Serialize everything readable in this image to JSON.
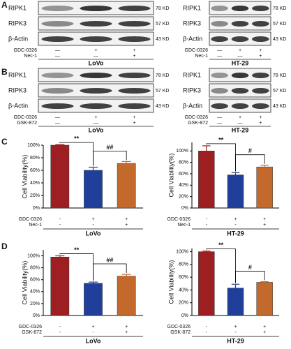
{
  "panel_labels": [
    "A",
    "B",
    "C",
    "D"
  ],
  "blots": [
    {
      "cell_line": "LoVo",
      "bands": [
        {
          "label": "RIPK1",
          "size": "78 KD"
        },
        {
          "label": "RIPK3",
          "size": "57 KD"
        },
        {
          "label": "β-Actin",
          "size": "43 KD"
        }
      ],
      "treatments": [
        {
          "name": "GDC-0326",
          "signs": [
            "—",
            "+",
            "+"
          ]
        },
        {
          "name": "Nec-1",
          "signs": [
            "—",
            "—",
            "+"
          ]
        }
      ]
    },
    {
      "cell_line": "HT-29",
      "bands": [
        {
          "label": "RIPK1",
          "size": "78 KD"
        },
        {
          "label": "RIPK3",
          "size": "57 KD"
        },
        {
          "label": "β-Actin",
          "size": "43 KD"
        }
      ],
      "treatments": [
        {
          "name": "GDC-0326",
          "signs": [
            "—",
            "+",
            "+"
          ]
        },
        {
          "name": "Nec-1",
          "signs": [
            "—",
            "—",
            "+"
          ]
        }
      ]
    },
    {
      "cell_line": "LoVo",
      "bands": [
        {
          "label": "RIPK1",
          "size": "78 KD"
        },
        {
          "label": "RIPK3",
          "size": "57 KD"
        },
        {
          "label": "β-Actin",
          "size": "43 KD"
        }
      ],
      "treatments": [
        {
          "name": "GDC-0326",
          "signs": [
            "—",
            "+",
            "+"
          ]
        },
        {
          "name": "GSK-872",
          "signs": [
            "—",
            "—",
            "+"
          ]
        }
      ]
    },
    {
      "cell_line": "HT-29",
      "bands": [
        {
          "label": "RIPK1",
          "size": "78 KD"
        },
        {
          "label": "RIPK3",
          "size": "57 KD"
        },
        {
          "label": "β-Actin",
          "size": "43 KD"
        }
      ],
      "treatments": [
        {
          "name": "GDC-0326",
          "signs": [
            "—",
            "+",
            "+"
          ]
        },
        {
          "name": "GSK-872",
          "signs": [
            "—",
            "—",
            "+"
          ]
        }
      ]
    }
  ],
  "chart_data": [
    {
      "type": "bar",
      "y_label": "Cell Viability(%)",
      "cell_line": "LoVo",
      "categories": [
        null,
        null,
        null
      ],
      "values": [
        100,
        60,
        71
      ],
      "errors": [
        1,
        5,
        3
      ],
      "colors": [
        "#9e1f22",
        "#1f3f9a",
        "#c2692b"
      ],
      "ylim": [
        0,
        100
      ],
      "yticks": [
        {
          "value": 0,
          "label": "0%"
        },
        {
          "value": 20,
          "label": "20%"
        },
        {
          "value": 40,
          "label": "40%"
        },
        {
          "value": 60,
          "label": "60%"
        },
        {
          "value": 80,
          "label": "80%"
        },
        {
          "value": 100,
          "label": "100%"
        }
      ],
      "annotations": [
        "**",
        "##"
      ],
      "treatments": [
        {
          "name": "GDC-0326",
          "signs": [
            "-",
            "+",
            "+"
          ]
        },
        {
          "name": "Nec-1",
          "signs": [
            "-",
            "-",
            "+"
          ]
        }
      ]
    },
    {
      "type": "bar",
      "y_label": "Cell Viability(%)",
      "cell_line": "HT-29",
      "categories": [
        null,
        null,
        null
      ],
      "values": [
        100,
        58,
        72
      ],
      "errors": [
        9,
        4,
        3
      ],
      "colors": [
        "#9e1f22",
        "#1f3f9a",
        "#c2692b"
      ],
      "ylim": [
        0,
        115
      ],
      "yticks": [
        {
          "value": 0,
          "label": "0%"
        },
        {
          "value": 20,
          "label": "20%"
        },
        {
          "value": 40,
          "label": "40%"
        },
        {
          "value": 60,
          "label": "60%"
        },
        {
          "value": 80,
          "label": "80%"
        },
        {
          "value": 100,
          "label": "100%"
        }
      ],
      "annotations": [
        "**",
        "#"
      ],
      "treatments": [
        {
          "name": "GDC-0326",
          "signs": [
            "-",
            "+",
            "+"
          ]
        },
        {
          "name": "Nec-1",
          "signs": [
            "-",
            "-",
            "+"
          ]
        }
      ]
    },
    {
      "type": "bar",
      "y_label": "Cell Viability(%)",
      "cell_line": "LoVo",
      "categories": [
        null,
        null,
        null
      ],
      "values": [
        98,
        54,
        66
      ],
      "errors": [
        2,
        2,
        3
      ],
      "colors": [
        "#9e1f22",
        "#1f3f9a",
        "#c2692b"
      ],
      "ylim": [
        0,
        110
      ],
      "yticks": [
        {
          "value": 0,
          "label": "0%"
        },
        {
          "value": 20,
          "label": "20%"
        },
        {
          "value": 40,
          "label": "40%"
        },
        {
          "value": 60,
          "label": "60%"
        },
        {
          "value": 80,
          "label": "80%"
        },
        {
          "value": 100,
          "label": "100%"
        }
      ],
      "annotations": [
        "**",
        "##"
      ],
      "treatments": [
        {
          "name": "GDC-0326",
          "signs": [
            "-",
            "+",
            "+"
          ]
        },
        {
          "name": "GSK-872",
          "signs": [
            "-",
            "-",
            "+"
          ]
        }
      ]
    },
    {
      "type": "bar",
      "y_label": "Cell Viability(%)",
      "cell_line": "HT-29",
      "categories": [
        null,
        null,
        null
      ],
      "values": [
        100,
        43,
        52
      ],
      "errors": [
        1,
        6,
        1
      ],
      "colors": [
        "#9e1f22",
        "#1f3f9a",
        "#c2692b"
      ],
      "ylim": [
        0,
        105
      ],
      "yticks": [
        {
          "value": 0,
          "label": "0%"
        },
        {
          "value": 20,
          "label": "20%"
        },
        {
          "value": 40,
          "label": "40%"
        },
        {
          "value": 60,
          "label": "60%"
        },
        {
          "value": 80,
          "label": "80%"
        },
        {
          "value": 100,
          "label": "100%"
        }
      ],
      "annotations": [
        "**",
        "#"
      ],
      "treatments": [
        {
          "name": "GDC-0326",
          "signs": [
            "-",
            "+",
            "+"
          ]
        },
        {
          "name": "GSK-872",
          "signs": [
            "-",
            "-",
            "+"
          ]
        }
      ]
    }
  ]
}
